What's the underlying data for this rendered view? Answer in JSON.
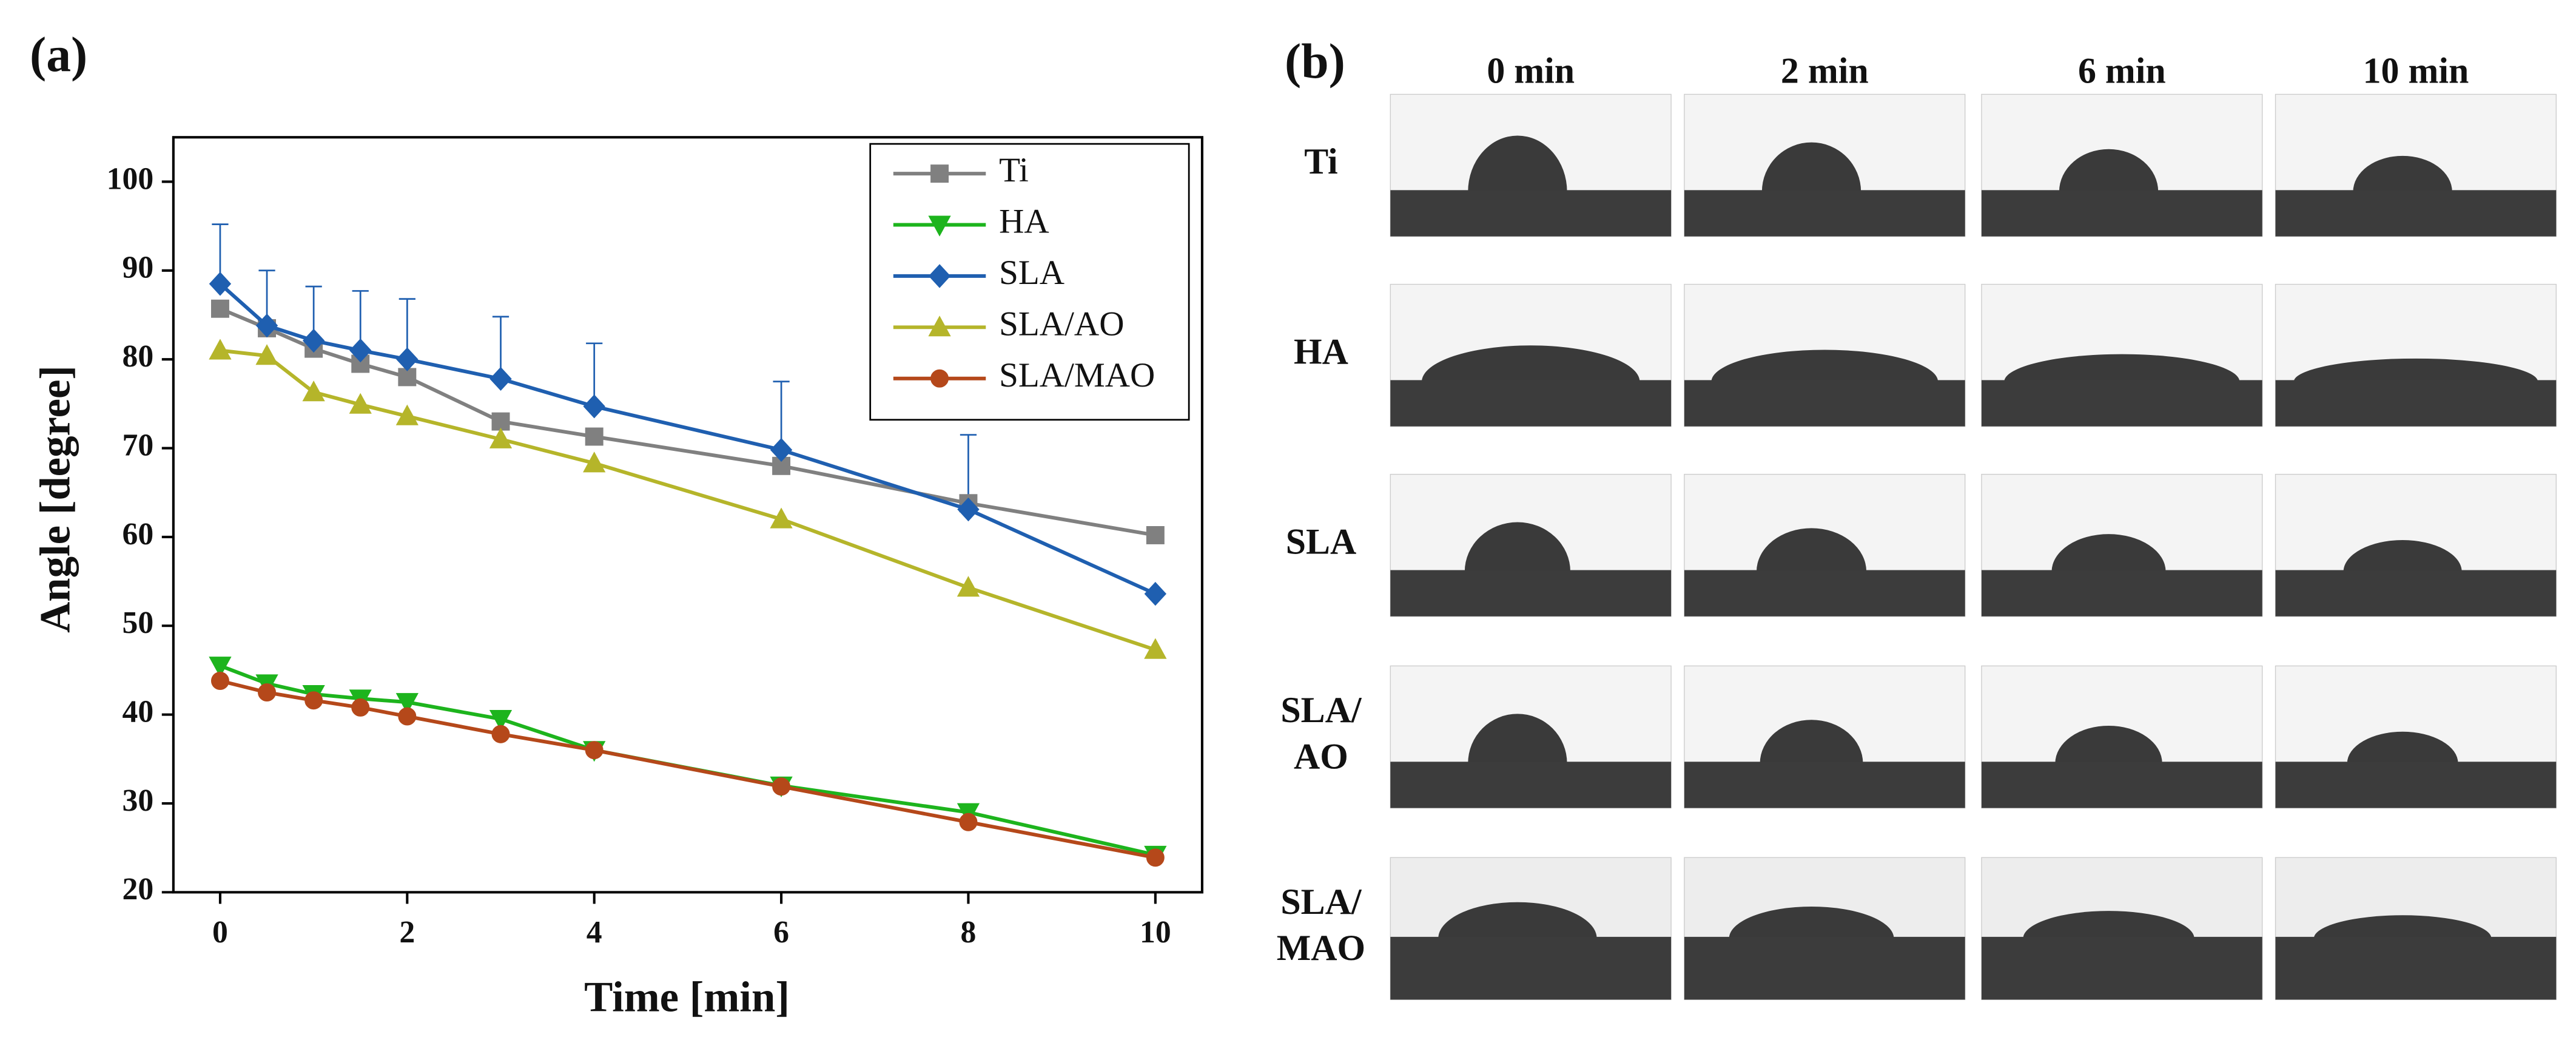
{
  "panel_labels": [
    "(a)",
    "(b)"
  ],
  "chart_data": {
    "type": "line",
    "xlabel": "Time [min]",
    "ylabel": "Angle [degree]",
    "x": [
      0,
      0.5,
      1,
      1.5,
      2,
      3,
      4,
      6,
      8,
      10
    ],
    "xlim": [
      -0.5,
      10.5
    ],
    "xticks": [
      0,
      2,
      4,
      6,
      8,
      10
    ],
    "ylim": [
      20,
      105
    ],
    "yticks": [
      20,
      30,
      40,
      50,
      60,
      70,
      80,
      90,
      100
    ],
    "legend": "upper right",
    "series": [
      {
        "name": "Ti",
        "color": "#808080",
        "marker": "square",
        "values": [
          85.7,
          83.5,
          81.2,
          79.5,
          78,
          73,
          71.3,
          68,
          63.8,
          60.2
        ]
      },
      {
        "name": "HA",
        "color": "#1db41d",
        "marker": "triangle-down",
        "values": [
          45.5,
          43.5,
          42.3,
          41.8,
          41.4,
          39.5,
          36,
          32,
          29,
          24.2
        ]
      },
      {
        "name": "SLA",
        "color": "#1f5fb0",
        "marker": "diamond",
        "values": [
          88.5,
          83.8,
          82.1,
          81,
          80,
          77.8,
          74.7,
          69.8,
          63.1,
          53.6
        ],
        "errors": [
          6.7,
          6.2,
          6.1,
          6.7,
          6.8,
          7,
          7.1,
          7.7,
          8.4,
          null
        ]
      },
      {
        "name": "SLA/AO",
        "color": "#b5b52a",
        "marker": "triangle-up",
        "values": [
          81,
          80.4,
          76.3,
          74.9,
          73.6,
          71,
          68.3,
          62,
          54.3,
          47.3
        ]
      },
      {
        "name": "SLA/MAO",
        "color": "#b5481a",
        "marker": "circle",
        "values": [
          43.8,
          42.5,
          41.6,
          40.8,
          39.8,
          37.8,
          36,
          31.9,
          27.9,
          23.9
        ]
      }
    ]
  },
  "photo_grid": {
    "columns": [
      "0 min",
      "2 min",
      "6 min",
      "10 min"
    ],
    "rows": [
      [
        "Ti"
      ],
      [
        "HA"
      ],
      [
        "SLA"
      ],
      [
        "SLA/",
        "AO"
      ],
      [
        "SLA/",
        "MAO"
      ]
    ]
  }
}
